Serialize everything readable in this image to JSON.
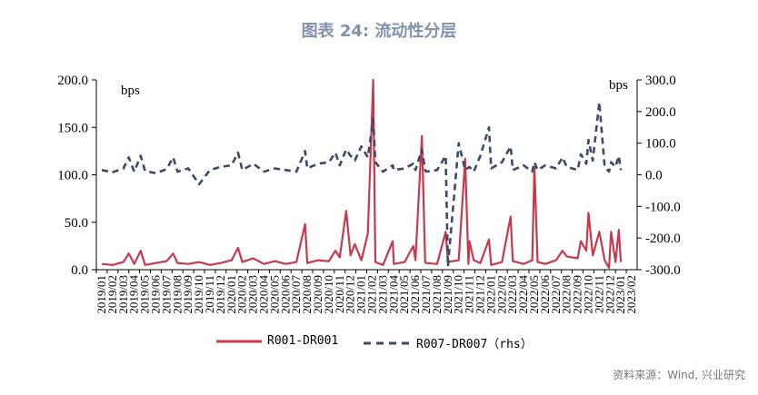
{
  "title": "图表 24: 流动性分层",
  "source": "资料来源：Wind, 兴业研究",
  "legend": [
    {
      "name": "R001-DR001",
      "color": "#c8394d",
      "style": "solid"
    },
    {
      "name": "R007-DR007（rhs）",
      "color": "#3d4a6b",
      "style": "dashed"
    }
  ],
  "chart_data": {
    "type": "line",
    "left_unit": "bps",
    "right_unit": "bps",
    "y_left": {
      "min": 0,
      "max": 200,
      "ticks": [
        "0.0",
        "50.0",
        "100.0",
        "150.0",
        "200.0"
      ]
    },
    "y_right": {
      "min": -300,
      "max": 300,
      "ticks": [
        "-300.0",
        "-200.0",
        "-100.0",
        "0.0",
        "100.0",
        "200.0",
        "300.0"
      ]
    },
    "x_ticks": [
      "2019/01",
      "2019/02",
      "2019/03",
      "2019/04",
      "2019/05",
      "2019/06",
      "2019/07",
      "2019/08",
      "2019/09",
      "2019/10",
      "2019/11",
      "2019/12",
      "2020/01",
      "2020/02",
      "2020/03",
      "2020/04",
      "2020/05",
      "2020/06",
      "2020/07",
      "2020/08",
      "2020/09",
      "2020/10",
      "2020/11",
      "2020/12",
      "2021/01",
      "2021/02",
      "2021/03",
      "2021/04",
      "2021/05",
      "2021/06",
      "2021/07",
      "2021/08",
      "2021/09",
      "2021/10",
      "2021/11",
      "2021/12",
      "2022/01",
      "2022/02",
      "2022/03",
      "2022/04",
      "2022/05",
      "2022/06",
      "2022/07",
      "2022/08",
      "2022/09",
      "2022/10",
      "2022/11",
      "2022/12",
      "2023/01",
      "2023/02"
    ],
    "series": [
      {
        "name": "R001-DR001",
        "axis": "left",
        "points": [
          [
            0,
            6
          ],
          [
            1,
            5
          ],
          [
            2,
            8
          ],
          [
            2.5,
            17
          ],
          [
            3,
            6
          ],
          [
            3.6,
            20
          ],
          [
            4,
            5
          ],
          [
            5,
            7
          ],
          [
            6,
            9
          ],
          [
            6.6,
            17
          ],
          [
            7,
            7
          ],
          [
            8,
            6
          ],
          [
            9,
            8
          ],
          [
            10,
            5
          ],
          [
            11,
            7
          ],
          [
            12,
            10
          ],
          [
            12.6,
            23
          ],
          [
            13,
            8
          ],
          [
            14,
            12
          ],
          [
            15,
            6
          ],
          [
            16,
            9
          ],
          [
            17,
            6
          ],
          [
            18,
            8
          ],
          [
            18.8,
            48
          ],
          [
            19,
            7
          ],
          [
            20,
            10
          ],
          [
            21,
            9
          ],
          [
            21.6,
            20
          ],
          [
            22,
            13
          ],
          [
            22.6,
            62
          ],
          [
            23,
            15
          ],
          [
            23.4,
            27
          ],
          [
            24,
            10
          ],
          [
            24.6,
            38
          ],
          [
            25.1,
            200
          ],
          [
            25.3,
            8
          ],
          [
            26,
            5
          ],
          [
            26.9,
            30
          ],
          [
            27,
            6
          ],
          [
            28,
            8
          ],
          [
            28.8,
            25
          ],
          [
            29,
            10
          ],
          [
            29.6,
            141
          ],
          [
            29.9,
            8
          ],
          [
            30,
            7
          ],
          [
            31,
            6
          ],
          [
            31.8,
            40
          ],
          [
            32,
            8
          ],
          [
            33,
            10
          ],
          [
            33.6,
            117
          ],
          [
            33.9,
            6
          ],
          [
            34,
            30
          ],
          [
            34.4,
            10
          ],
          [
            35,
            7
          ],
          [
            35.8,
            32
          ],
          [
            36,
            5
          ],
          [
            37,
            8
          ],
          [
            37.8,
            56
          ],
          [
            38,
            9
          ],
          [
            39,
            6
          ],
          [
            39.8,
            10
          ],
          [
            40,
            108
          ],
          [
            40.3,
            8
          ],
          [
            41,
            6
          ],
          [
            42,
            10
          ],
          [
            42.6,
            20
          ],
          [
            43,
            14
          ],
          [
            44,
            12
          ],
          [
            44.3,
            30
          ],
          [
            44.8,
            20
          ],
          [
            45,
            60
          ],
          [
            45.4,
            15
          ],
          [
            46,
            40
          ],
          [
            46.5,
            10
          ],
          [
            46.9,
            2
          ],
          [
            47.1,
            40
          ],
          [
            47.5,
            8
          ],
          [
            47.8,
            42
          ],
          [
            48,
            8
          ]
        ]
      },
      {
        "name": "R007-DR007（rhs）",
        "axis": "right",
        "points": [
          [
            0,
            15
          ],
          [
            1,
            8
          ],
          [
            2,
            20
          ],
          [
            2.5,
            55
          ],
          [
            3,
            10
          ],
          [
            3.6,
            60
          ],
          [
            4,
            12
          ],
          [
            5,
            5
          ],
          [
            6,
            18
          ],
          [
            6.6,
            55
          ],
          [
            7,
            10
          ],
          [
            8,
            20
          ],
          [
            9,
            -30
          ],
          [
            10,
            15
          ],
          [
            11,
            25
          ],
          [
            12,
            30
          ],
          [
            12.6,
            70
          ],
          [
            13,
            15
          ],
          [
            14,
            35
          ],
          [
            15,
            10
          ],
          [
            16,
            20
          ],
          [
            17,
            15
          ],
          [
            18,
            10
          ],
          [
            18.8,
            75
          ],
          [
            19,
            20
          ],
          [
            20,
            35
          ],
          [
            21,
            40
          ],
          [
            21.6,
            70
          ],
          [
            22,
            30
          ],
          [
            22.6,
            80
          ],
          [
            23,
            60
          ],
          [
            23.4,
            45
          ],
          [
            24,
            90
          ],
          [
            24.6,
            55
          ],
          [
            25.1,
            175
          ],
          [
            25.3,
            40
          ],
          [
            26,
            10
          ],
          [
            26.9,
            30
          ],
          [
            27,
            15
          ],
          [
            28,
            20
          ],
          [
            28.8,
            35
          ],
          [
            29,
            15
          ],
          [
            29.6,
            80
          ],
          [
            29.9,
            15
          ],
          [
            30,
            10
          ],
          [
            31,
            15
          ],
          [
            31.8,
            60
          ],
          [
            32,
            -290
          ],
          [
            33,
            100
          ],
          [
            33.6,
            15
          ],
          [
            34,
            25
          ],
          [
            34.4,
            10
          ],
          [
            35,
            60
          ],
          [
            35.8,
            150
          ],
          [
            36,
            20
          ],
          [
            37,
            40
          ],
          [
            37.8,
            90
          ],
          [
            38,
            15
          ],
          [
            39,
            30
          ],
          [
            39.8,
            10
          ],
          [
            40,
            40
          ],
          [
            40.3,
            15
          ],
          [
            41,
            30
          ],
          [
            42,
            20
          ],
          [
            42.6,
            55
          ],
          [
            43,
            25
          ],
          [
            44,
            15
          ],
          [
            44.3,
            65
          ],
          [
            44.8,
            35
          ],
          [
            45,
            110
          ],
          [
            45.4,
            45
          ],
          [
            46,
            230
          ],
          [
            46.5,
            25
          ],
          [
            46.9,
            10
          ],
          [
            47.1,
            40
          ],
          [
            47.5,
            25
          ],
          [
            47.8,
            60
          ],
          [
            48,
            15
          ]
        ]
      }
    ]
  }
}
